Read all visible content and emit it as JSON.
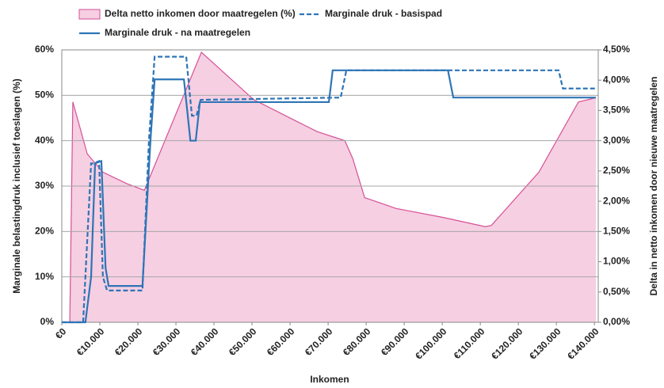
{
  "chart_data": {
    "type": "line",
    "xlabel": "Inkomen",
    "ylabel": "Marginale belastingdruk inclusief toeslagen (%)",
    "y2label": "Delta in netto inkomen door nieuwe maatregelen",
    "xlim": [
      0,
      141000
    ],
    "xticks": [
      {
        "value": 0,
        "label": "€0"
      },
      {
        "value": 10000,
        "label": "€10.000"
      },
      {
        "value": 20000,
        "label": "€20.000"
      },
      {
        "value": 30000,
        "label": "€30.000"
      },
      {
        "value": 40000,
        "label": "€40.000"
      },
      {
        "value": 50000,
        "label": "€50.000"
      },
      {
        "value": 60000,
        "label": "€60.000"
      },
      {
        "value": 70000,
        "label": "€70.000"
      },
      {
        "value": 80000,
        "label": "€80.000"
      },
      {
        "value": 90000,
        "label": "€90.000"
      },
      {
        "value": 100000,
        "label": "€100.000"
      },
      {
        "value": 110000,
        "label": "€110.000"
      },
      {
        "value": 120000,
        "label": "€120.000"
      },
      {
        "value": 130000,
        "label": "€130.000"
      },
      {
        "value": 140000,
        "label": "€140.000"
      }
    ],
    "ylim": [
      0,
      60
    ],
    "yticks": [
      {
        "value": 0,
        "label": "0%"
      },
      {
        "value": 10,
        "label": "10%"
      },
      {
        "value": 20,
        "label": "20%"
      },
      {
        "value": 30,
        "label": "30%"
      },
      {
        "value": 40,
        "label": "40%"
      },
      {
        "value": 50,
        "label": "50%"
      },
      {
        "value": 60,
        "label": "60%"
      }
    ],
    "y2lim": [
      0,
      4.5
    ],
    "y2ticks": [
      {
        "value": 0,
        "label": "0,00%"
      },
      {
        "value": 0.5,
        "label": "0,50%"
      },
      {
        "value": 1,
        "label": "1,00%"
      },
      {
        "value": 1.5,
        "label": "1,50%"
      },
      {
        "value": 2,
        "label": "2,00%"
      },
      {
        "value": 2.5,
        "label": "2,50%"
      },
      {
        "value": 3,
        "label": "3,00%"
      },
      {
        "value": 3.5,
        "label": "3,50%"
      },
      {
        "value": 4,
        "label": "4,00%"
      },
      {
        "value": 4.5,
        "label": "4,50%"
      }
    ],
    "grid": true,
    "legend": "top",
    "series": [
      {
        "name": "Delta netto inkomen door maatregelen (%)",
        "kind": "area",
        "axis": "y2",
        "color": "#d64f96",
        "fill": "#f6cfe2",
        "x": [
          2100,
          2900,
          6700,
          10800,
          17100,
          21700,
          36700,
          50400,
          67100,
          74400,
          76500,
          79600,
          87900,
          100400,
          111300,
          112900,
          125400,
          135800,
          140400
        ],
        "values": [
          0,
          3.64,
          2.78,
          2.48,
          2.29,
          2.18,
          4.46,
          3.68,
          3.15,
          3.0,
          2.7,
          2.06,
          1.88,
          1.73,
          1.58,
          1.6,
          2.48,
          3.64,
          3.71
        ]
      },
      {
        "name": "Marginale druk - basispad",
        "kind": "dashed",
        "color": "#2e75b6",
        "x": [
          0,
          5600,
          7700,
          8300,
          9800,
          10800,
          11900,
          21200,
          22900,
          24400,
          32700,
          34200,
          35400,
          36500,
          73300,
          74800,
          101500,
          130600,
          131700,
          140400
        ],
        "values": [
          0,
          0,
          35,
          35,
          35.5,
          10,
          7,
          7,
          40,
          58.5,
          58.5,
          45.5,
          45.5,
          49,
          49.5,
          55.5,
          55.5,
          55.5,
          51.5,
          51.5
        ]
      },
      {
        "name": "Marginale druk - na maatregelen",
        "kind": "solid",
        "color": "#2e75b6",
        "x": [
          0,
          6200,
          7700,
          8750,
          10400,
          11500,
          12300,
          21200,
          23300,
          24400,
          32100,
          33800,
          35200,
          36300,
          70200,
          71200,
          101500,
          102900,
          140400
        ],
        "values": [
          0,
          0,
          10,
          35,
          35.5,
          12,
          8,
          8,
          40,
          53.5,
          53.5,
          40,
          40,
          48.5,
          48.5,
          55.5,
          55.5,
          49.5,
          49.5
        ]
      }
    ]
  }
}
